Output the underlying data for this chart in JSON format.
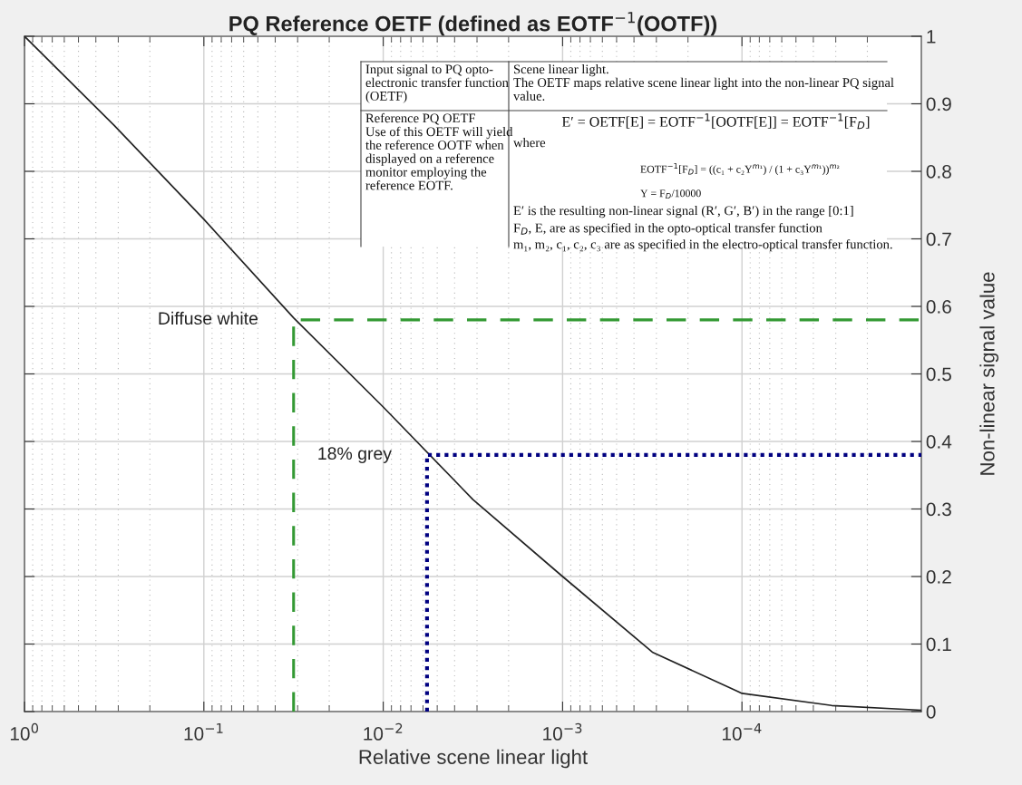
{
  "chart_data": {
    "type": "line",
    "title": "PQ Reference OETF (defined as EOTF$^{−1}$(OOTF))",
    "xlabel": "Relative scene linear light",
    "ylabel": "Non-linear signal value",
    "log": "x",
    "grid": true,
    "xlim": [
      1,
      1e-05
    ],
    "ylim": [
      0,
      1
    ],
    "xticks": [
      {
        "value": 1,
        "label": "10$^{0}$"
      },
      {
        "value": 0.1,
        "label": "10$^{−1}$"
      },
      {
        "value": 0.01,
        "label": "10$^{−2}$"
      },
      {
        "value": 0.001,
        "label": "10$^{−3}$"
      },
      {
        "value": 0.0001,
        "label": "10$^{−4}$"
      }
    ],
    "yticks": [
      0,
      0.1,
      0.2,
      0.3,
      0.4,
      0.5,
      0.6,
      0.7,
      0.8,
      0.9,
      1
    ],
    "series": [
      {
        "color": "#222222",
        "line_style": "solid",
        "x": [
          1,
          0.316,
          0.1,
          0.0316,
          0.01,
          0.00316,
          0.001,
          0.000316,
          0.0001,
          3.16e-05,
          1e-05
        ],
        "values": [
          1,
          0.868,
          0.729,
          0.583,
          0.451,
          0.314,
          0.2,
          0.088,
          0.027,
          0.009,
          0.002
        ]
      },
      {
        "color": "#339933",
        "line_style": "dashed",
        "x": [
          0.0316,
          0.0316,
          1e-05
        ],
        "values": [
          0,
          0.58,
          0.58
        ]
      },
      {
        "color": "#000080",
        "line_style": "dotted",
        "x": [
          0.0057,
          0.0057,
          1e-05
        ],
        "values": [
          0,
          0.38,
          0.38
        ]
      }
    ],
    "annotations": [
      {
        "text": "Diffuse white",
        "x": 0.0316,
        "y": 0.58
      },
      {
        "text": "18% grey",
        "x": 0.0057,
        "y": 0.38
      },
      "Input signal to PQ opto-\nelectronic transfer function\n(OETF)",
      "Scene linear light.\nThe OETF maps relative scene linear light into the non-linear PQ signal\nvalue.",
      "Reference PQ OETF\nUse of this OETF will yield\nthe reference OOTF when\ndisplayed on a reference\nmonitor employing the\nreference EOTF.",
      "E′ = OETF[E] = EOTF$^{−1}$[OOTF[E]] = EOTF$^{−1}$[F$_{D}$]",
      "where",
      "EOTF$^{−1}$[F$_{D}$] = ((c₁ + c₂Y$^{m₁}$) / (1 + c₃Y$^{m₁}$))$^{m₂}$",
      "Y = F$_{D}$/10000",
      "E′ is the resulting non-linear signal (R′, G′, B′) in the range [0:1]",
      "F$_{D}$, E, are as specified in the opto-optical transfer function",
      "m₁, m₂, c₁, c₂, c₃ are as specified in the electro-optical transfer function."
    ]
  }
}
